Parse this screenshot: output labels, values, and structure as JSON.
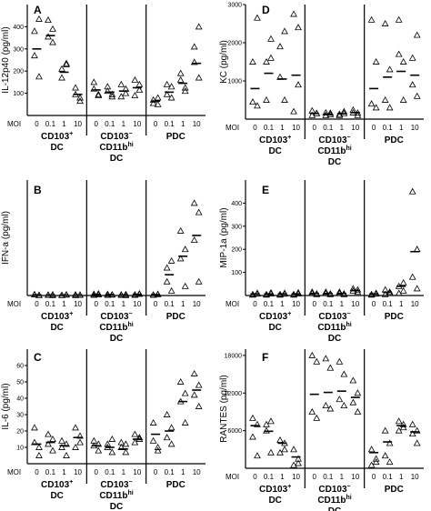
{
  "moi_label": "MOI",
  "moi_levels": [
    "0",
    "0.1",
    "1",
    "10"
  ],
  "groups": [
    {
      "line1": "CD103",
      "sup1": "+",
      "line2": "DC",
      "sup2": "",
      "line3": ""
    },
    {
      "line1": "CD103",
      "sup1": "−",
      "line2": "CD11b",
      "sup2": "hi",
      "line3": "DC"
    },
    {
      "line1": "PDC",
      "sup1": "",
      "line2": "",
      "sup2": "",
      "line3": ""
    }
  ],
  "chart_data": [
    {
      "panel": "A",
      "type": "scatter",
      "ylabel": "IL-12p40 (pg/ml)",
      "ylim": [
        0,
        500
      ],
      "yticks": [
        "100",
        "200",
        "300",
        "400"
      ],
      "points": [
        [
          [
            270,
            175,
            380,
            435
          ],
          [
            430,
            330,
            355,
            390
          ],
          [
            210,
            230,
            170,
            235
          ],
          [
            125,
            80,
            95,
            65
          ]
        ],
        [
          [
            150,
            95,
            120,
            90
          ],
          [
            130,
            85,
            110,
            95
          ],
          [
            140,
            120,
            85,
            100
          ],
          [
            160,
            115,
            90,
            140
          ]
        ],
        [
          [
            55,
            80,
            70,
            50
          ],
          [
            95,
            130,
            140,
            80
          ],
          [
            190,
            125,
            160,
            110
          ],
          [
            240,
            170,
            310,
            400
          ]
        ]
      ],
      "means": [
        [
          300,
          360,
          195,
          95
        ],
        [
          115,
          105,
          110,
          125
        ],
        [
          65,
          105,
          145,
          235
        ]
      ]
    },
    {
      "panel": "D",
      "type": "scatter",
      "ylabel": "KC (pg/ml)",
      "ylim": [
        0,
        3000
      ],
      "yticks": [
        "1000",
        "2000",
        "3000"
      ],
      "points": [
        [
          [
            1500,
            350,
            450,
            2650
          ],
          [
            1500,
            1600,
            500,
            2100
          ],
          [
            1100,
            500,
            1900,
            2300
          ],
          [
            2750,
            2400,
            200,
            900
          ]
        ],
        [
          [
            220,
            150,
            100,
            150
          ],
          [
            170,
            120,
            100,
            160
          ],
          [
            130,
            150,
            100,
            200
          ],
          [
            170,
            100,
            240,
            160
          ]
        ],
        [
          [
            2600,
            1500,
            400,
            300
          ],
          [
            2500,
            1300,
            500,
            300
          ],
          [
            2600,
            1500,
            1700,
            500
          ],
          [
            1600,
            2200,
            900,
            600
          ]
        ]
      ],
      "means": [
        [
          800,
          1200,
          1050,
          1150
        ],
        [
          150,
          130,
          140,
          170
        ],
        [
          800,
          1100,
          1250,
          1150
        ]
      ]
    },
    {
      "panel": "B",
      "type": "scatter",
      "ylabel": "IFN-a (pg/ml)",
      "ylim": [
        0,
        2500
      ],
      "yticks": [],
      "points": [
        [
          [
            20,
            10,
            25,
            5
          ],
          [
            10,
            20,
            15,
            5
          ],
          [
            10,
            20,
            5,
            15
          ],
          [
            20,
            10,
            5,
            15
          ]
        ],
        [
          [
            30,
            20,
            10,
            40
          ],
          [
            10,
            20,
            30,
            15
          ],
          [
            10,
            25,
            20,
            5
          ],
          [
            10,
            30,
            20,
            40
          ]
        ],
        [
          [
            15,
            25,
            10,
            30
          ],
          [
            600,
            750,
            300,
            100
          ],
          [
            1400,
            1000,
            800,
            200
          ],
          [
            2000,
            1800,
            1200,
            300
          ]
        ]
      ],
      "means": [
        [
          15,
          12,
          12,
          12
        ],
        [
          25,
          20,
          15,
          25
        ],
        [
          20,
          450,
          850,
          1300
        ]
      ]
    },
    {
      "panel": "E",
      "type": "scatter",
      "ylabel": "MIP-1a (pg/ml)",
      "ylim": [
        0,
        500
      ],
      "yticks": [
        "100",
        "200",
        "300",
        "400"
      ],
      "points": [
        [
          [
            5,
            10,
            3,
            7
          ],
          [
            5,
            12,
            3,
            8
          ],
          [
            5,
            10,
            3,
            7
          ],
          [
            5,
            12,
            3,
            8
          ]
        ],
        [
          [
            10,
            5,
            15,
            8
          ],
          [
            10,
            5,
            15,
            8
          ],
          [
            10,
            5,
            15,
            8
          ],
          [
            30,
            15,
            20,
            25
          ]
        ],
        [
          [
            5,
            10,
            3,
            7
          ],
          [
            5,
            15,
            25,
            10
          ],
          [
            40,
            55,
            10,
            20
          ],
          [
            450,
            200,
            80,
            30
          ]
        ]
      ],
      "means": [
        [
          7,
          7,
          7,
          7
        ],
        [
          9,
          9,
          9,
          22
        ],
        [
          7,
          14,
          40,
          190
        ]
      ]
    },
    {
      "panel": "C",
      "type": "scatter",
      "ylabel": "IL-6 (pg/ml)",
      "ylim": [
        0,
        70
      ],
      "yticks": [
        "10",
        "20",
        "30",
        "40",
        "50",
        "60"
      ],
      "points": [
        [
          [
            22,
            5,
            13,
            10
          ],
          [
            18,
            8,
            12,
            15
          ],
          [
            14,
            5,
            10,
            12
          ],
          [
            22,
            17,
            10,
            13
          ]
        ],
        [
          [
            14,
            8,
            11,
            12
          ],
          [
            12,
            7,
            10,
            15
          ],
          [
            13,
            7,
            10,
            12
          ],
          [
            18,
            15,
            13,
            16
          ]
        ],
        [
          [
            25,
            10,
            14,
            8
          ],
          [
            30,
            22,
            16,
            12
          ],
          [
            50,
            43,
            38,
            25
          ],
          [
            55,
            48,
            42,
            35
          ]
        ]
      ],
      "means": [
        [
          12,
          13,
          11,
          16
        ],
        [
          11,
          10,
          9,
          15
        ],
        [
          18,
          20,
          38,
          45
        ]
      ]
    },
    {
      "panel": "F",
      "type": "scatter",
      "ylabel": "RANTES (pg/ml)",
      "ylim": [
        0,
        19000
      ],
      "yticks": [
        "6000",
        "12000",
        "18000"
      ],
      "points": [
        [
          [
            8000,
            7000,
            5000,
            2000
          ],
          [
            7000,
            7500,
            6000,
            2500
          ],
          [
            4500,
            4000,
            2500,
            3000
          ],
          [
            3000,
            1500,
            500,
            800
          ]
        ],
        [
          [
            18000,
            17000,
            9000,
            8000
          ],
          [
            17500,
            16000,
            10000,
            9500
          ],
          [
            17000,
            15000,
            11000,
            10000
          ],
          [
            14000,
            12000,
            10500,
            9000
          ]
        ],
        [
          [
            3000,
            1500,
            500,
            1000
          ],
          [
            6000,
            4000,
            2000,
            1000
          ],
          [
            7500,
            7000,
            6000,
            6500
          ],
          [
            7000,
            6000,
            5500,
            4000
          ]
        ]
      ],
      "means": [
        [
          6800,
          5900,
          4000,
          1800
        ],
        [
          11800,
          12100,
          12300,
          11300
        ],
        [
          2500,
          4200,
          6800,
          5800
        ]
      ]
    }
  ]
}
